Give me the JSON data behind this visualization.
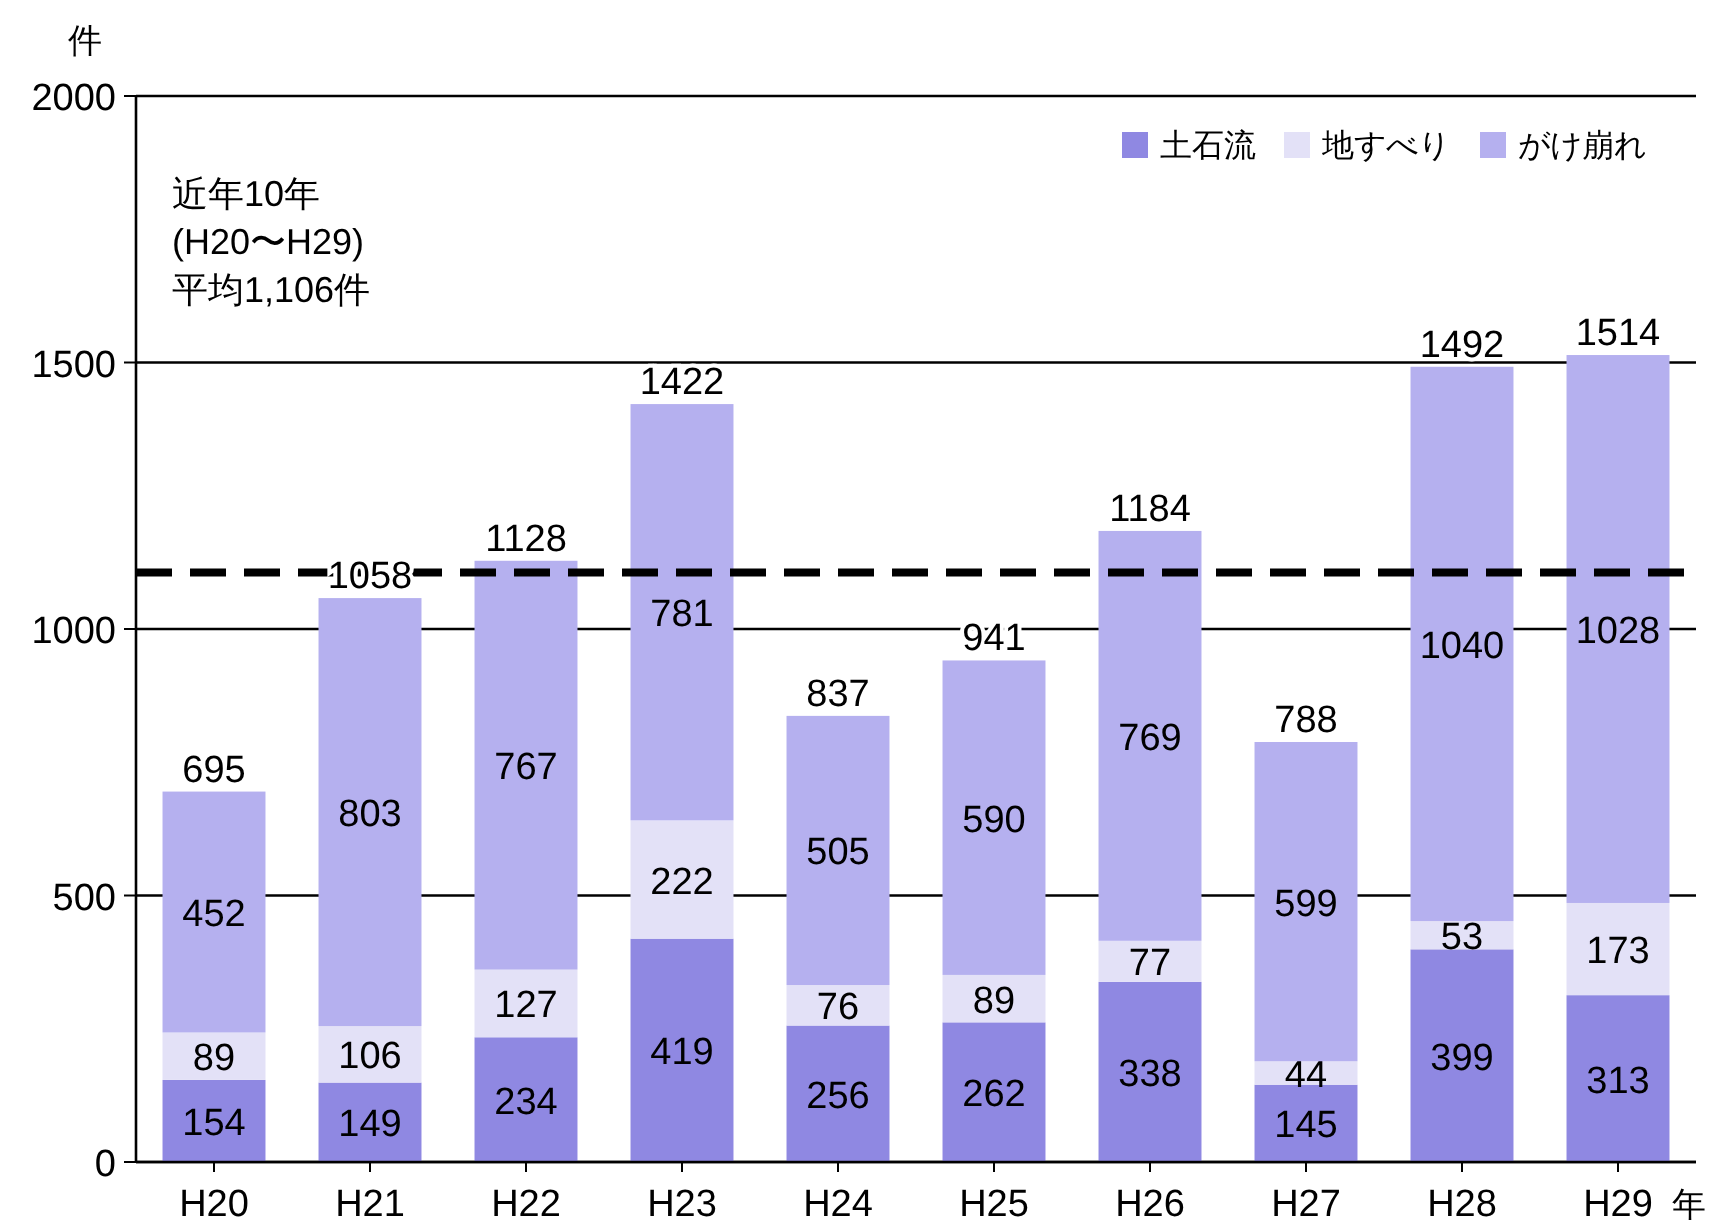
{
  "chart_data": {
    "type": "bar",
    "stacked": true,
    "ylabel": "件",
    "xlabel": "年",
    "categories": [
      "H20",
      "H21",
      "H22",
      "H23",
      "H24",
      "H25",
      "H26",
      "H27",
      "H28",
      "H29"
    ],
    "series": [
      {
        "name": "土石流",
        "color": "#8f88e2",
        "values": [
          154,
          149,
          234,
          419,
          256,
          262,
          338,
          145,
          399,
          313
        ]
      },
      {
        "name": "地すべり",
        "color": "#e3e1f7",
        "values": [
          89,
          106,
          127,
          222,
          76,
          89,
          77,
          44,
          53,
          173
        ]
      },
      {
        "name": "がけ崩れ",
        "color": "#b5b0ef",
        "values": [
          452,
          803,
          767,
          781,
          505,
          590,
          769,
          599,
          1040,
          1028
        ]
      }
    ],
    "totals": [
      "695",
      "1058",
      "1128",
      "1422",
      "837",
      "941",
      "1184",
      "788",
      "1492",
      "1514"
    ],
    "data_labels": true,
    "ylim": [
      0,
      2000
    ],
    "yticks": [
      0,
      500,
      1000,
      1500,
      2000
    ],
    "grid": "y",
    "legend": "top right",
    "ref_lines": [
      {
        "axis": "y",
        "value": 1106,
        "color": "#000000",
        "line_style": "dashed"
      }
    ],
    "annotations": [
      "近年10年\n(H20〜H29)\n平均1,106件"
    ]
  }
}
